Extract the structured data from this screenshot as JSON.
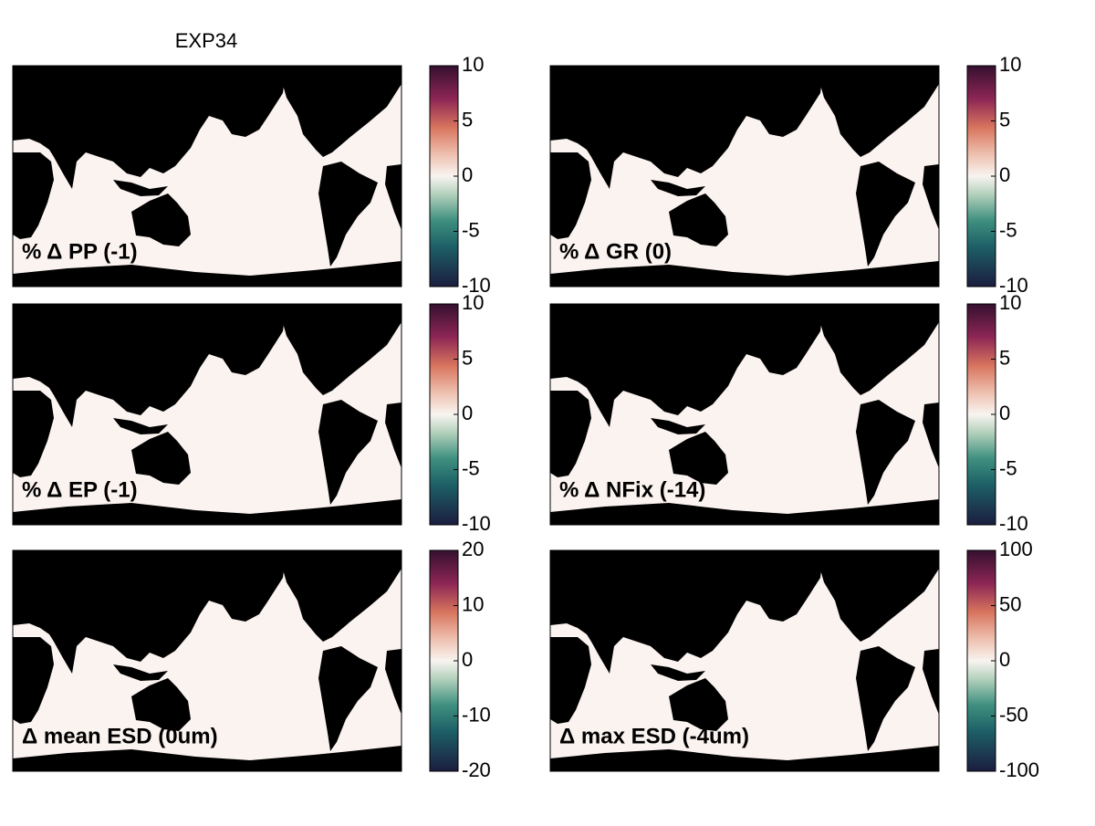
{
  "title": "EXP34",
  "panels": [
    {
      "label": "% Δ PP (-1)",
      "colorbar": {
        "lim": [
          -10,
          10
        ],
        "ticks": [
          -10,
          -5,
          0,
          5,
          10
        ]
      }
    },
    {
      "label": "% Δ GR (0)",
      "colorbar": {
        "lim": [
          -10,
          10
        ],
        "ticks": [
          -10,
          -5,
          0,
          5,
          10
        ]
      }
    },
    {
      "label": "% Δ EP (-1)",
      "colorbar": {
        "lim": [
          -10,
          10
        ],
        "ticks": [
          -10,
          -5,
          0,
          5,
          10
        ]
      }
    },
    {
      "label": "% Δ NFix (-14)",
      "colorbar": {
        "lim": [
          -10,
          10
        ],
        "ticks": [
          -10,
          -5,
          0,
          5,
          10
        ]
      }
    },
    {
      "label": "Δ mean ESD (0um)",
      "colorbar": {
        "lim": [
          -20,
          20
        ],
        "ticks": [
          -20,
          -10,
          0,
          10,
          20
        ]
      }
    },
    {
      "label": "Δ max ESD (-4um)",
      "colorbar": {
        "lim": [
          -100,
          100
        ],
        "ticks": [
          -100,
          -50,
          0,
          50,
          100
        ]
      }
    }
  ]
}
